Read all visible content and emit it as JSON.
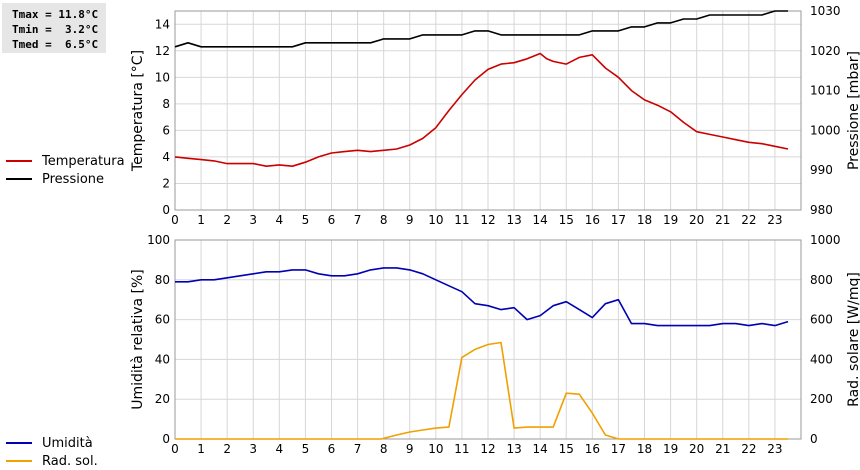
{
  "stats": {
    "tmax": "Tmax = 11.8°C",
    "tmin": "Tmin =  3.2°C",
    "tmed": "Tmed =  6.5°C"
  },
  "colors": {
    "temperature": "#cc0000",
    "pressure": "#000000",
    "humidity": "#0000b4",
    "solar": "#f0a000",
    "grid": "#d7d7d7",
    "frame": "#9a9a9a"
  },
  "chart_data": [
    {
      "type": "line",
      "ylabel": "Temperatura [°C]",
      "y2label": "Pressione [mbar]",
      "xlim": [
        0,
        24
      ],
      "ylim": [
        0,
        15
      ],
      "y2lim": [
        980,
        1030
      ],
      "xticks": [
        "0",
        "1",
        "2",
        "3",
        "4",
        "5",
        "6",
        "7",
        "8",
        "9",
        "10",
        "11",
        "12",
        "13",
        "14",
        "15",
        "16",
        "17",
        "18",
        "19",
        "20",
        "21",
        "22",
        "23"
      ],
      "yticks": [
        "0",
        "2",
        "4",
        "6",
        "8",
        "10",
        "12",
        "14"
      ],
      "y2ticks": [
        "980",
        "990",
        "1000",
        "1010",
        "1020",
        "1030"
      ],
      "grid": true,
      "legend_position": "left",
      "series": [
        {
          "name": "Temperatura",
          "axis": "left",
          "color": "#cc0000",
          "x": [
            0,
            0.5,
            1,
            1.5,
            2,
            2.5,
            3,
            3.5,
            4,
            4.5,
            5,
            5.5,
            6,
            6.5,
            7,
            7.5,
            8,
            8.5,
            9,
            9.5,
            10,
            10.5,
            11,
            11.5,
            12,
            12.5,
            13,
            13.5,
            14,
            14.25,
            14.5,
            15,
            15.5,
            16,
            16.5,
            17,
            17.5,
            18,
            18.5,
            19,
            19.5,
            20,
            20.5,
            21,
            21.5,
            22,
            22.5,
            23,
            23.5
          ],
          "y": [
            4.0,
            3.9,
            3.8,
            3.7,
            3.5,
            3.5,
            3.5,
            3.3,
            3.4,
            3.3,
            3.6,
            4.0,
            4.3,
            4.4,
            4.5,
            4.4,
            4.5,
            4.6,
            4.9,
            5.4,
            6.2,
            7.5,
            8.7,
            9.8,
            10.6,
            11.0,
            11.1,
            11.4,
            11.8,
            11.4,
            11.2,
            11.0,
            11.5,
            11.7,
            10.7,
            10.0,
            9.0,
            8.3,
            7.9,
            7.4,
            6.6,
            5.9,
            5.7,
            5.5,
            5.3,
            5.1,
            5.0,
            4.8,
            4.6
          ]
        },
        {
          "name": "Pressione",
          "axis": "right",
          "color": "#000000",
          "x": [
            0,
            0.5,
            1,
            1.5,
            2,
            2.5,
            3,
            3.5,
            4,
            4.5,
            5,
            5.5,
            6,
            6.5,
            7,
            7.5,
            8,
            8.5,
            9,
            9.5,
            10,
            10.5,
            11,
            11.5,
            12,
            12.5,
            13,
            13.5,
            14,
            14.5,
            15,
            15.5,
            16,
            16.5,
            17,
            17.5,
            18,
            18.5,
            19,
            19.5,
            20,
            20.5,
            21,
            21.5,
            22,
            22.5,
            23,
            23.5
          ],
          "y": [
            1021,
            1022,
            1021,
            1021,
            1021,
            1021,
            1021,
            1021,
            1021,
            1021,
            1022,
            1022,
            1022,
            1022,
            1022,
            1022,
            1023,
            1023,
            1023,
            1024,
            1024,
            1024,
            1024,
            1025,
            1025,
            1024,
            1024,
            1024,
            1024,
            1024,
            1024,
            1024,
            1025,
            1025,
            1025,
            1026,
            1026,
            1027,
            1027,
            1028,
            1028,
            1029,
            1029,
            1029,
            1029,
            1029,
            1030,
            1030
          ]
        }
      ]
    },
    {
      "type": "line",
      "ylabel": "Umidità relativa [%]",
      "y2label": "Rad. solare [W/mq]",
      "xlim": [
        0,
        24
      ],
      "ylim": [
        0,
        100
      ],
      "y2lim": [
        0,
        1000
      ],
      "xticks": [
        "0",
        "1",
        "2",
        "3",
        "4",
        "5",
        "6",
        "7",
        "8",
        "9",
        "10",
        "11",
        "12",
        "13",
        "14",
        "15",
        "16",
        "17",
        "18",
        "19",
        "20",
        "21",
        "22",
        "23"
      ],
      "yticks": [
        "0",
        "20",
        "40",
        "60",
        "80",
        "100"
      ],
      "y2ticks": [
        "0",
        "200",
        "400",
        "600",
        "800",
        "1000"
      ],
      "grid": true,
      "legend_position": "left",
      "series": [
        {
          "name": "Umidità",
          "axis": "left",
          "color": "#0000b4",
          "x": [
            0,
            0.5,
            1,
            1.5,
            2,
            2.5,
            3,
            3.5,
            4,
            4.5,
            5,
            5.5,
            6,
            6.5,
            7,
            7.5,
            8,
            8.5,
            9,
            9.5,
            10,
            10.5,
            11,
            11.5,
            12,
            12.5,
            13,
            13.5,
            14,
            14.5,
            15,
            15.5,
            16,
            16.5,
            17,
            17.5,
            18,
            18.5,
            19,
            19.5,
            20,
            20.5,
            21,
            21.5,
            22,
            22.5,
            23,
            23.5
          ],
          "y": [
            79,
            79,
            80,
            80,
            81,
            82,
            83,
            84,
            84,
            85,
            85,
            83,
            82,
            82,
            83,
            85,
            86,
            86,
            85,
            83,
            80,
            77,
            74,
            68,
            67,
            65,
            66,
            60,
            62,
            67,
            69,
            65,
            61,
            68,
            70,
            58,
            58,
            57,
            57,
            57,
            57,
            57,
            58,
            58,
            57,
            58,
            57,
            59
          ]
        },
        {
          "name": "Rad. sol.",
          "axis": "right",
          "color": "#f0a000",
          "x": [
            0,
            1,
            2,
            3,
            4,
            5,
            6,
            7,
            7.9,
            8.5,
            9,
            9.5,
            10,
            10.5,
            11,
            11.5,
            12,
            12.5,
            13,
            13.5,
            14,
            14.5,
            15,
            15.5,
            16,
            16.5,
            17,
            17.5,
            18,
            19,
            20,
            21,
            22,
            23,
            23.5
          ],
          "y": [
            0,
            0,
            0,
            0,
            0,
            0,
            0,
            0,
            0,
            20,
            35,
            45,
            55,
            60,
            410,
            450,
            475,
            485,
            55,
            60,
            60,
            60,
            230,
            225,
            130,
            20,
            0,
            0,
            0,
            0,
            0,
            0,
            0,
            0,
            0
          ]
        }
      ]
    }
  ]
}
